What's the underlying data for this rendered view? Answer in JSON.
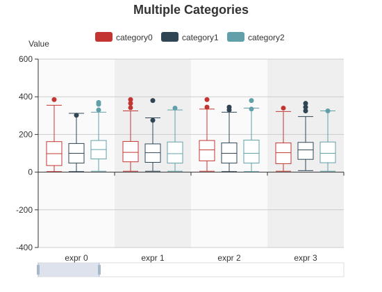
{
  "chart_data": {
    "type": "boxplot",
    "title": "Multiple Categories",
    "ylabel": "Value",
    "ylim": [
      -400,
      600
    ],
    "yticks": [
      -400,
      -200,
      0,
      200,
      400,
      600
    ],
    "grid": true,
    "legend_position": "top",
    "categories": [
      "expr 0",
      "expr 1",
      "expr 2",
      "expr 3"
    ],
    "series": [
      {
        "name": "category0",
        "color": "#c23531",
        "boxes": [
          {
            "min": 3,
            "q1": 35,
            "median": 98,
            "q3": 162,
            "max": 355,
            "outliers": [
              385
            ]
          },
          {
            "min": 5,
            "q1": 55,
            "median": 105,
            "q3": 163,
            "max": 325,
            "outliers": [
              342,
              365,
              385
            ]
          },
          {
            "min": 5,
            "q1": 60,
            "median": 118,
            "q3": 168,
            "max": 335,
            "outliers": [
              345,
              385
            ]
          },
          {
            "min": 5,
            "q1": 45,
            "median": 103,
            "q3": 155,
            "max": 322,
            "outliers": [
              340
            ]
          }
        ]
      },
      {
        "name": "category1",
        "color": "#2f4554",
        "boxes": [
          {
            "min": 3,
            "q1": 48,
            "median": 100,
            "q3": 152,
            "max": 312,
            "outliers": [
              302
            ]
          },
          {
            "min": 5,
            "q1": 52,
            "median": 103,
            "q3": 150,
            "max": 288,
            "outliers": [
              275,
              380
            ]
          },
          {
            "min": 3,
            "q1": 48,
            "median": 100,
            "q3": 155,
            "max": 318,
            "outliers": [
              330,
              345
            ]
          },
          {
            "min": 8,
            "q1": 68,
            "median": 118,
            "q3": 158,
            "max": 295,
            "outliers": [
              325,
              345,
              365
            ]
          }
        ]
      },
      {
        "name": "category2",
        "color": "#61a0a8",
        "boxes": [
          {
            "min": 5,
            "q1": 70,
            "median": 120,
            "q3": 168,
            "max": 318,
            "outliers": [
              330,
              360,
              370
            ]
          },
          {
            "min": 5,
            "q1": 48,
            "median": 98,
            "q3": 160,
            "max": 330,
            "outliers": [
              340
            ]
          },
          {
            "min": 3,
            "q1": 48,
            "median": 100,
            "q3": 170,
            "max": 340,
            "outliers": [
              335,
              380
            ]
          },
          {
            "min": 5,
            "q1": 50,
            "median": 100,
            "q3": 160,
            "max": 325,
            "outliers": [
              325
            ]
          }
        ]
      }
    ]
  },
  "colors": {
    "band_light": "#fafafa",
    "band_dark": "#efefef",
    "grid": "#cccccc",
    "axis": "#333333",
    "slider_fill": "#d5dbe8",
    "slider_border": "#dddddd",
    "slider_handle": "#a7b7cc"
  }
}
